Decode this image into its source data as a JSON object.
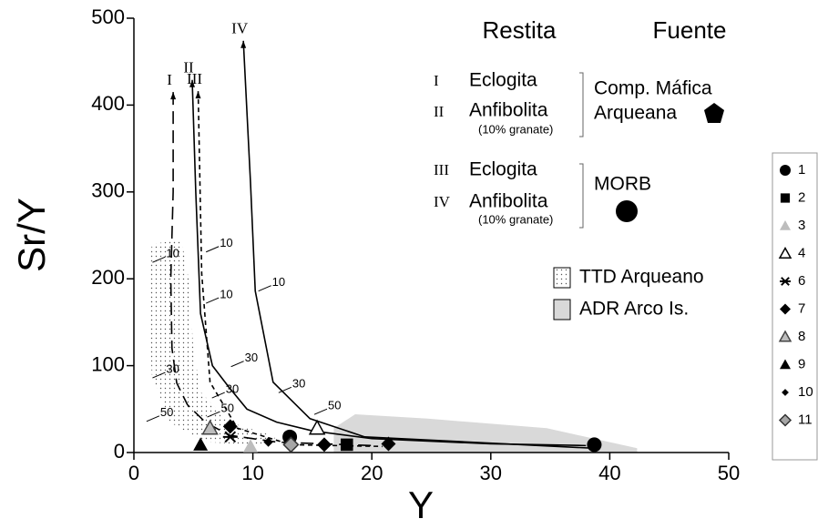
{
  "chart_data": {
    "type": "scatter",
    "x_label": "Y",
    "y_label": "Sr/Y",
    "xlim": [
      0,
      50
    ],
    "ylim": [
      0,
      500
    ],
    "xticks": [
      0,
      10,
      20,
      30,
      40,
      50
    ],
    "yticks": [
      0,
      100,
      200,
      300,
      400,
      500
    ],
    "header": {
      "restita": "Restita",
      "fuente": "Fuente"
    },
    "sources": [
      {
        "roman": "I",
        "label": "Eclogita"
      },
      {
        "roman": "II",
        "label": "Anfibolita",
        "note": "(10% granate)"
      },
      {
        "roman": "III",
        "label": "Eclogita"
      },
      {
        "roman": "IV",
        "label": "Anfibolita",
        "note": "(10% granate)"
      }
    ],
    "source_groups": [
      [
        "Comp. Máfica",
        "Arqueana"
      ],
      [
        "MORB"
      ]
    ],
    "regions": [
      {
        "name": "TTD Arqueano",
        "style": "stipple",
        "x": [
          1.5,
          4,
          4.6,
          5,
          5.6,
          8,
          12,
          11,
          6,
          3,
          1.5,
          1.2
        ],
        "y": [
          240,
          245,
          200,
          120,
          70,
          35,
          18,
          8,
          12,
          35,
          90,
          180
        ]
      },
      {
        "name": "ADR Arco Is.",
        "style": "gray",
        "color": "#d9d9d9",
        "x": [
          16.8,
          18.6,
          24.7,
          34.7,
          42.3,
          42.3,
          16.8
        ],
        "y": [
          28,
          44,
          39,
          28,
          5,
          0,
          0
        ]
      }
    ],
    "curves": [
      {
        "name": "I",
        "dash": "14 7",
        "x": [
          3.3,
          3.3,
          3.1,
          3.2,
          3.6,
          4.5,
          6,
          8,
          12,
          20
        ],
        "y": [
          415,
          300,
          200,
          120,
          80,
          55,
          35,
          20,
          12,
          8
        ]
      },
      {
        "name": "II",
        "dash": "none",
        "x": [
          4.9,
          5.2,
          5.6,
          6.6,
          8,
          9.5,
          12,
          15,
          20,
          30,
          38
        ],
        "y": [
          429,
          300,
          160,
          100,
          75,
          50,
          35,
          25,
          16,
          10,
          8
        ]
      },
      {
        "name": "III",
        "dash": "5 4",
        "x": [
          5.4,
          5.7,
          6.4,
          8.7,
          13.2,
          20.9
        ],
        "y": [
          416,
          206,
          81,
          28,
          9,
          7
        ]
      },
      {
        "name": "IV",
        "dash": "none",
        "x": [
          9.2,
          9.8,
          10.2,
          11.7,
          14.8,
          19.4,
          38.5
        ],
        "y": [
          474,
          311,
          186,
          81,
          39,
          18,
          5
        ]
      }
    ],
    "curve_ticks": [
      {
        "label": "10",
        "x": 2.1,
        "y": 222
      },
      {
        "label": "10",
        "x": 6.6,
        "y": 234
      },
      {
        "label": "10",
        "x": 6.6,
        "y": 175
      },
      {
        "label": "10",
        "x": 11,
        "y": 189
      },
      {
        "label": "30",
        "x": 2.1,
        "y": 89
      },
      {
        "label": "30",
        "x": 8.7,
        "y": 102
      },
      {
        "label": "30",
        "x": 7.1,
        "y": 66
      },
      {
        "label": "30",
        "x": 12.7,
        "y": 72
      },
      {
        "label": "50",
        "x": 1.6,
        "y": 39
      },
      {
        "label": "50",
        "x": 6.7,
        "y": 44
      },
      {
        "label": "50",
        "x": 15.7,
        "y": 47
      }
    ],
    "series": [
      {
        "name": "1",
        "marker": "circle",
        "color": "#000000",
        "x": [
          13.1,
          38.7
        ],
        "y": [
          18,
          9
        ]
      },
      {
        "name": "2",
        "marker": "square",
        "color": "#000000",
        "x": [
          17.9
        ],
        "y": [
          9
        ]
      },
      {
        "name": "3",
        "marker": "triangle",
        "color": "#bdbdbd",
        "x": [
          9.8
        ],
        "y": [
          7
        ]
      },
      {
        "name": "4",
        "marker": "triangle-open",
        "color": "#ffffff",
        "x": [
          15.4
        ],
        "y": [
          28
        ]
      },
      {
        "name": "6",
        "marker": "asterisk",
        "color": "#000000",
        "x": [
          8.1
        ],
        "y": [
          18
        ]
      },
      {
        "name": "7",
        "marker": "diamond",
        "color": "#000000",
        "x": [
          8.1,
          16.0,
          21.4
        ],
        "y": [
          30,
          9,
          10
        ]
      },
      {
        "name": "8",
        "marker": "triangle-outline",
        "color": "#bdbdbd",
        "x": [
          6.4
        ],
        "y": [
          28
        ]
      },
      {
        "name": "9",
        "marker": "triangle",
        "color": "#000000",
        "x": [
          5.6
        ],
        "y": [
          9
        ]
      },
      {
        "name": "10",
        "marker": "diamond-small",
        "color": "#000000",
        "x": [
          11.3
        ],
        "y": [
          12
        ]
      },
      {
        "name": "11",
        "marker": "diamond-outline",
        "color": "#a6a6a6",
        "x": [
          13.2
        ],
        "y": [
          9
        ]
      }
    ]
  }
}
